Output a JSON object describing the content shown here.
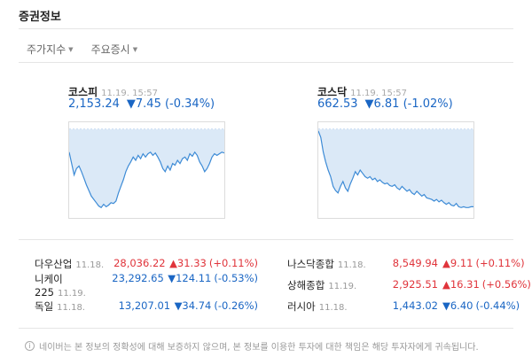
{
  "header": {
    "title": "증권정보"
  },
  "tabs": [
    {
      "label": "주가지수"
    },
    {
      "label": "주요증시"
    }
  ],
  "indices": [
    {
      "name": "코스피",
      "time": "11.19. 15:57",
      "value": "2,153.24",
      "change": "▼7.45",
      "pct": "(-0.34%)",
      "series": [
        0.72,
        0.58,
        0.44,
        0.52,
        0.55,
        0.48,
        0.4,
        0.32,
        0.25,
        0.18,
        0.14,
        0.1,
        0.06,
        0.04,
        0.08,
        0.05,
        0.07,
        0.1,
        0.09,
        0.12,
        0.22,
        0.3,
        0.38,
        0.48,
        0.55,
        0.6,
        0.66,
        0.62,
        0.68,
        0.64,
        0.7,
        0.66,
        0.7,
        0.72,
        0.68,
        0.71,
        0.66,
        0.6,
        0.52,
        0.48,
        0.55,
        0.5,
        0.58,
        0.56,
        0.62,
        0.58,
        0.64,
        0.66,
        0.62,
        0.7,
        0.67,
        0.72,
        0.68,
        0.6,
        0.55,
        0.48,
        0.52,
        0.58,
        0.66,
        0.7,
        0.68,
        0.7,
        0.72,
        0.71
      ]
    },
    {
      "name": "코스닥",
      "time": "11.19. 15:57",
      "value": "662.53",
      "change": "▼6.81",
      "pct": "(-1.02%)",
      "series": [
        0.98,
        0.9,
        0.72,
        0.6,
        0.5,
        0.42,
        0.3,
        0.25,
        0.22,
        0.3,
        0.36,
        0.28,
        0.24,
        0.33,
        0.4,
        0.48,
        0.44,
        0.5,
        0.46,
        0.42,
        0.4,
        0.42,
        0.38,
        0.4,
        0.36,
        0.38,
        0.35,
        0.33,
        0.34,
        0.31,
        0.3,
        0.32,
        0.28,
        0.26,
        0.3,
        0.27,
        0.24,
        0.26,
        0.22,
        0.2,
        0.24,
        0.21,
        0.18,
        0.2,
        0.16,
        0.15,
        0.14,
        0.12,
        0.14,
        0.11,
        0.13,
        0.1,
        0.08,
        0.1,
        0.07,
        0.06,
        0.09,
        0.05,
        0.04,
        0.05,
        0.04,
        0.04,
        0.05,
        0.05
      ]
    }
  ],
  "markets": [
    {
      "name": "다우산업",
      "date": "11.18.",
      "value": "28,036.22",
      "change": "▲31.33",
      "pct": "(+0.11%)",
      "dir": "up"
    },
    {
      "name": "나스닥종합",
      "date": "11.18.",
      "value": "8,549.94",
      "change": "▲9.11",
      "pct": "(+0.11%)",
      "dir": "up"
    },
    {
      "name": "니케이225",
      "date": "11.19.",
      "value": "23,292.65",
      "change": "▼124.11",
      "pct": "(-0.53%)",
      "dir": "down"
    },
    {
      "name": "상해종합",
      "date": "11.19.",
      "value": "2,925.51",
      "change": "▲16.31",
      "pct": "(+0.56%)",
      "dir": "up"
    },
    {
      "name": "독일",
      "date": "11.18.",
      "value": "13,207.01",
      "change": "▼34.74",
      "pct": "(-0.26%)",
      "dir": "down"
    },
    {
      "name": "러시아",
      "date": "11.18.",
      "value": "1,443.02",
      "change": "▼6.40",
      "pct": "(-0.44%)",
      "dir": "down"
    }
  ],
  "footer": {
    "info_icon_glyph": "i",
    "note": "네이버는 본 정보의 정확성에 대해 보증하지 않으며, 본 정보를 이용한 투자에 대한 책임은 해당 투자자에게 귀속됩니다."
  },
  "colors": {
    "up": "#e0343b",
    "down": "#1a66c4",
    "line": "#3d8bd6",
    "fill": "#dbe9f7"
  }
}
